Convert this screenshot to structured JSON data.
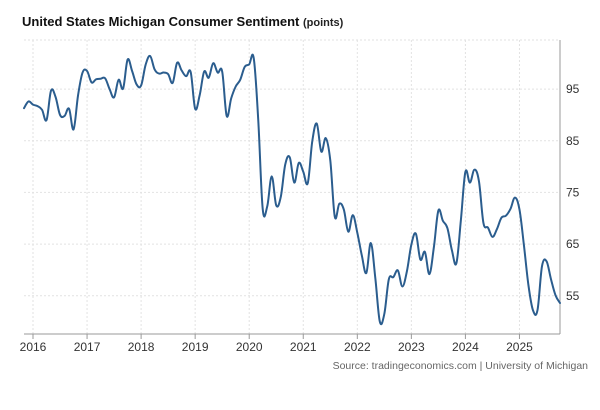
{
  "header": {
    "title": "United States Michigan Consumer Sentiment",
    "unit": "(points)"
  },
  "footer": {
    "source": "Source: tradingeconomics.com | University of Michigan"
  },
  "colors": {
    "line": "#2b5d8e",
    "grid": "#e2e2e2",
    "axis": "#999999"
  },
  "chart_data": {
    "type": "line",
    "title": "United States Michigan Consumer Sentiment (points)",
    "xlabel": "",
    "ylabel": "",
    "xlim": [
      "2015-11",
      "2025-10"
    ],
    "ylim": [
      47.6,
      104.5
    ],
    "y_ticks": [
      55,
      65,
      75,
      85,
      95
    ],
    "x_ticks": [
      "2016",
      "2017",
      "2018",
      "2019",
      "2020",
      "2021",
      "2022",
      "2023",
      "2024",
      "2025"
    ],
    "grid": true,
    "y_axis_position": "right",
    "series": [
      {
        "x": [
          "2015-11",
          "2015-12",
          "2016-01",
          "2016-02",
          "2016-03",
          "2016-04",
          "2016-05",
          "2016-06",
          "2016-07",
          "2016-08",
          "2016-09",
          "2016-10",
          "2016-11",
          "2016-12",
          "2017-01",
          "2017-02",
          "2017-03",
          "2017-04",
          "2017-05",
          "2017-06",
          "2017-07",
          "2017-08",
          "2017-09",
          "2017-10",
          "2017-11",
          "2017-12",
          "2018-01",
          "2018-02",
          "2018-03",
          "2018-04",
          "2018-05",
          "2018-06",
          "2018-07",
          "2018-08",
          "2018-09",
          "2018-10",
          "2018-11",
          "2018-12",
          "2019-01",
          "2019-02",
          "2019-03",
          "2019-04",
          "2019-05",
          "2019-06",
          "2019-07",
          "2019-08",
          "2019-09",
          "2019-10",
          "2019-11",
          "2019-12",
          "2020-01",
          "2020-02",
          "2020-03",
          "2020-04",
          "2020-05",
          "2020-06",
          "2020-07",
          "2020-08",
          "2020-09",
          "2020-10",
          "2020-11",
          "2020-12",
          "2021-01",
          "2021-02",
          "2021-03",
          "2021-04",
          "2021-05",
          "2021-06",
          "2021-07",
          "2021-08",
          "2021-09",
          "2021-10",
          "2021-11",
          "2021-12",
          "2022-01",
          "2022-02",
          "2022-03",
          "2022-04",
          "2022-05",
          "2022-06",
          "2022-07",
          "2022-08",
          "2022-09",
          "2022-10",
          "2022-11",
          "2022-12",
          "2023-01",
          "2023-02",
          "2023-03",
          "2023-04",
          "2023-05",
          "2023-06",
          "2023-07",
          "2023-08",
          "2023-09",
          "2023-10",
          "2023-11",
          "2023-12",
          "2024-01",
          "2024-02",
          "2024-03",
          "2024-04",
          "2024-05",
          "2024-06",
          "2024-07",
          "2024-08",
          "2024-09",
          "2024-10",
          "2024-11",
          "2024-12",
          "2025-01",
          "2025-02",
          "2025-03",
          "2025-04",
          "2025-05",
          "2025-06",
          "2025-07",
          "2025-08",
          "2025-09",
          "2025-10"
        ],
        "y": [
          91.3,
          92.6,
          92.0,
          91.7,
          91.0,
          89.0,
          94.7,
          93.5,
          90.0,
          89.8,
          91.2,
          87.2,
          93.8,
          98.2,
          98.5,
          96.3,
          96.9,
          97.0,
          97.1,
          95.0,
          93.4,
          96.8,
          95.1,
          100.7,
          98.5,
          95.9,
          95.7,
          99.7,
          101.4,
          98.8,
          98.0,
          98.2,
          97.9,
          96.2,
          100.1,
          98.6,
          97.5,
          98.3,
          91.2,
          93.8,
          98.4,
          97.2,
          100.0,
          98.2,
          98.4,
          89.8,
          93.2,
          95.5,
          96.8,
          99.3,
          99.8,
          101.0,
          89.1,
          71.8,
          72.3,
          78.1,
          72.5,
          74.1,
          80.4,
          81.8,
          76.9,
          80.7,
          79.0,
          76.8,
          84.9,
          88.3,
          82.9,
          85.5,
          81.2,
          70.3,
          72.8,
          71.7,
          67.4,
          70.6,
          67.2,
          62.8,
          59.4,
          65.2,
          58.4,
          50.0,
          51.5,
          58.2,
          58.6,
          59.9,
          56.8,
          59.7,
          64.9,
          67.0,
          62.0,
          63.5,
          59.2,
          64.4,
          71.5,
          69.5,
          68.1,
          63.8,
          61.3,
          69.7,
          79.0,
          76.9,
          79.4,
          77.2,
          69.1,
          68.2,
          66.4,
          67.9,
          70.1,
          70.5,
          71.8,
          74.0,
          71.7,
          64.7,
          57.0,
          52.2,
          52.2,
          60.7,
          61.7,
          58.2,
          55.1,
          53.6
        ]
      }
    ]
  }
}
